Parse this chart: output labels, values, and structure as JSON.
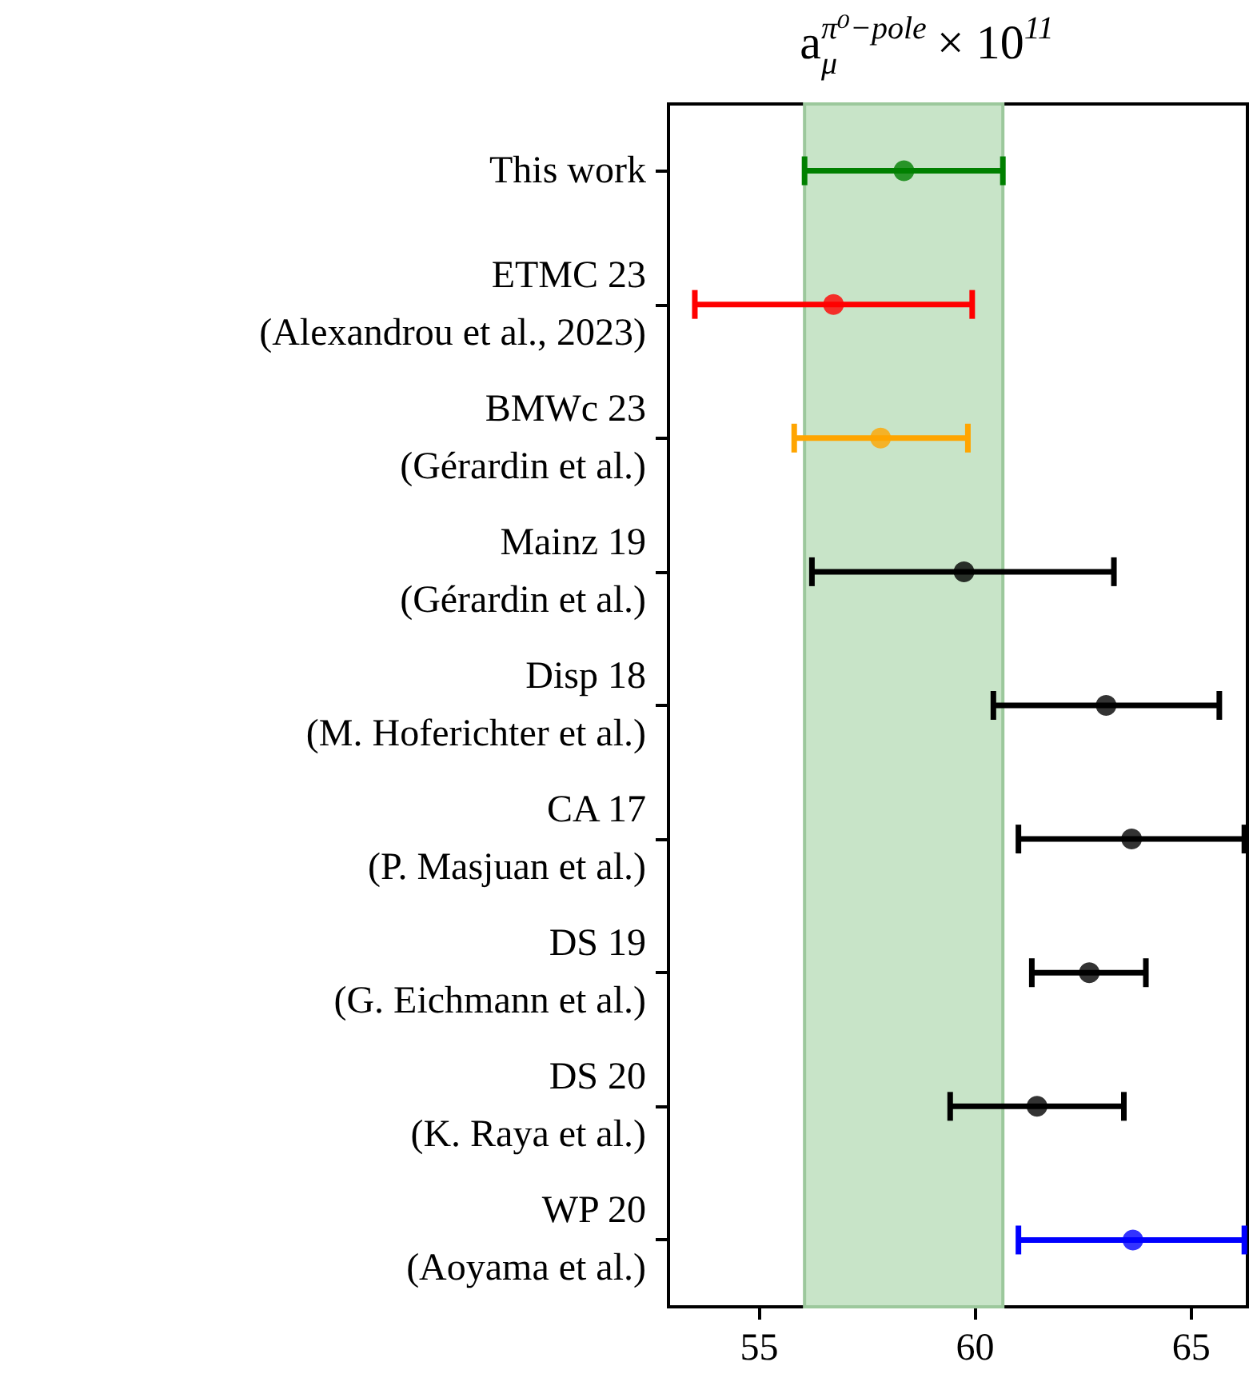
{
  "chart_data": {
    "type": "scatter",
    "orientation": "horizontal",
    "title": "a$^{π⁰−pole}$$_{μ}$ × 10$^{11}$",
    "categories": [
      "This work",
      "ETMC 23\n(Alexandrou et al., 2023)",
      "BMWc 23\n(Gérardin et al.)",
      "Mainz 19\n(Gérardin et al.)",
      "Disp 18\n(M. Hoferichter et al.)",
      "CA 17\n(P. Masjuan et al.)",
      "DS 19\n(G. Eichmann et al.)",
      "DS 20\n(K. Raya et al.)",
      "WP 20\n(Aoyama et al.)"
    ],
    "values": [
      58.35,
      56.72,
      57.81,
      59.74,
      63.03,
      63.62,
      62.64,
      61.43,
      63.65
    ],
    "errors": [
      [
        56.05,
        60.64
      ],
      [
        53.51,
        59.93
      ],
      [
        55.81,
        59.83
      ],
      [
        56.22,
        63.21
      ],
      [
        60.42,
        65.65
      ],
      [
        61.0,
        66.23
      ],
      [
        61.31,
        63.95
      ],
      [
        59.42,
        63.44
      ],
      [
        61.0,
        66.23
      ]
    ],
    "colors": [
      "#008000",
      "#ff0000",
      "#ffa500",
      "#000000",
      "#000000",
      "#000000",
      "#000000",
      "#000000",
      "#0000ff"
    ],
    "marker": "circle",
    "xlim": [
      52.9,
      66.3
    ],
    "xticks": [
      55,
      60,
      65
    ],
    "bands": [
      {
        "axis": "x",
        "from": 56.05,
        "to": 60.64,
        "color": "#c8e4c8"
      }
    ],
    "grid": false
  }
}
